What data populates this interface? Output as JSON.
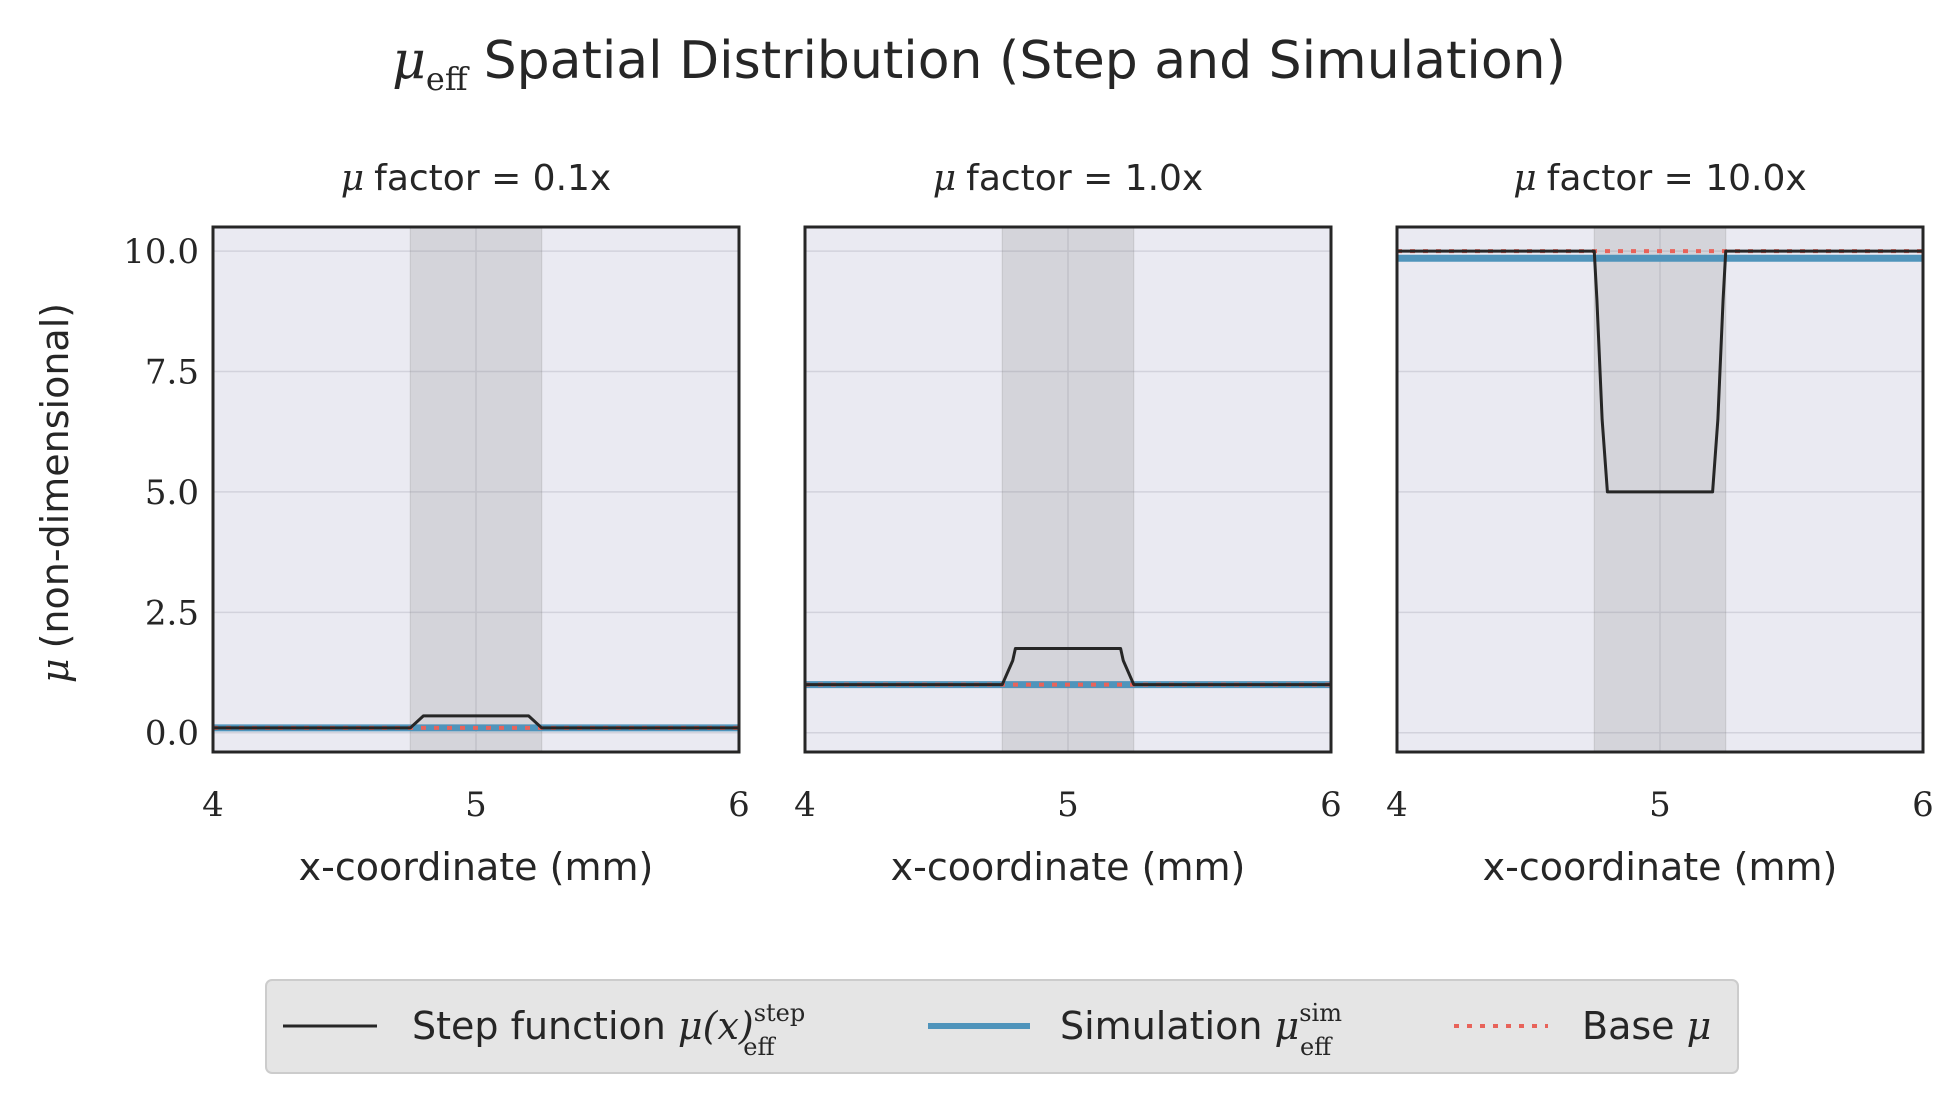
{
  "title": {
    "symbol": "μ",
    "subscript": "eff",
    "text": "Spatial Distribution (Step and Simulation)"
  },
  "colors": {
    "axes_bg": "#eaeaf2",
    "shade": "#7f7f7f",
    "step_line": "#262626",
    "sim_line": "#4f94bb",
    "base_line": "#e8635a",
    "grid": "#d2d2dc",
    "legend_bg": "#e5e5e5"
  },
  "y_axis_label": {
    "symbol": "μ",
    "text": "(non-dimensional)"
  },
  "x_axis_label": "x-coordinate (mm)",
  "legend": {
    "placement": "bottom-center",
    "items": [
      {
        "key": "step",
        "prefix": "Step function ",
        "math": "μ(x)",
        "sup": "step",
        "sub": "eff"
      },
      {
        "key": "sim",
        "prefix": "Simulation ",
        "math": "μ",
        "sup": "sim",
        "sub": "eff"
      },
      {
        "key": "base",
        "prefix": "Base ",
        "math": "μ",
        "sup": "",
        "sub": ""
      }
    ]
  },
  "chart_data": [
    {
      "type": "line",
      "title": {
        "symbol": "μ",
        "text": "factor = 0.1x"
      },
      "xlim": [
        4,
        6
      ],
      "ylim": [
        -0.4,
        10.5
      ],
      "xticks": [
        4,
        5,
        6
      ],
      "yticks": [
        0.0,
        2.5,
        5.0,
        7.5,
        10.0
      ],
      "ytick_labels": [
        "0.0",
        "2.5",
        "5.0",
        "7.5",
        "10.0"
      ],
      "shaded_region": [
        4.75,
        5.25
      ],
      "grid": true,
      "series": [
        {
          "key": "step",
          "name": "Step function μ(x)_eff^step",
          "x": [
            4.0,
            4.75,
            4.8,
            5.2,
            5.25,
            6.0
          ],
          "y": [
            0.1,
            0.1,
            0.35,
            0.35,
            0.1,
            0.1
          ]
        },
        {
          "key": "sim",
          "name": "Simulation μ_eff^sim",
          "x": [
            4.0,
            6.0
          ],
          "y": [
            0.1,
            0.1
          ]
        },
        {
          "key": "base",
          "name": "Base μ",
          "x": [
            4.0,
            6.0
          ],
          "y": [
            0.1,
            0.1
          ]
        }
      ]
    },
    {
      "type": "line",
      "title": {
        "symbol": "μ",
        "text": "factor = 1.0x"
      },
      "xlim": [
        4,
        6
      ],
      "ylim": [
        -0.4,
        10.5
      ],
      "xticks": [
        4,
        5,
        6
      ],
      "yticks": [
        0.0,
        2.5,
        5.0,
        7.5,
        10.0
      ],
      "ytick_labels": [],
      "shaded_region": [
        4.75,
        5.25
      ],
      "grid": true,
      "series": [
        {
          "key": "step",
          "name": "Step function μ(x)_eff^step",
          "x": [
            4.0,
            4.75,
            4.79,
            4.8,
            5.2,
            5.21,
            5.25,
            6.0
          ],
          "y": [
            1.0,
            1.0,
            1.5,
            1.75,
            1.75,
            1.5,
            1.0,
            1.0
          ]
        },
        {
          "key": "sim",
          "name": "Simulation μ_eff^sim",
          "x": [
            4.0,
            6.0
          ],
          "y": [
            1.0,
            1.0
          ]
        },
        {
          "key": "base",
          "name": "Base μ",
          "x": [
            4.0,
            6.0
          ],
          "y": [
            1.0,
            1.0
          ]
        }
      ]
    },
    {
      "type": "line",
      "title": {
        "symbol": "μ",
        "text": "factor = 10.0x"
      },
      "xlim": [
        4,
        6
      ],
      "ylim": [
        -0.4,
        10.5
      ],
      "xticks": [
        4,
        5,
        6
      ],
      "yticks": [
        0.0,
        2.5,
        5.0,
        7.5,
        10.0
      ],
      "ytick_labels": [],
      "shaded_region": [
        4.75,
        5.25
      ],
      "grid": true,
      "series": [
        {
          "key": "step",
          "name": "Step function μ(x)_eff^step",
          "x": [
            4.0,
            4.75,
            4.76,
            4.78,
            4.8,
            5.2,
            5.22,
            5.24,
            5.25,
            6.0
          ],
          "y": [
            10.0,
            10.0,
            9.0,
            6.5,
            5.0,
            5.0,
            6.5,
            9.0,
            10.0,
            10.0
          ]
        },
        {
          "key": "sim",
          "name": "Simulation μ_eff^sim",
          "x": [
            4.0,
            6.0
          ],
          "y": [
            9.85,
            9.85
          ]
        },
        {
          "key": "base",
          "name": "Base μ",
          "x": [
            4.0,
            6.0
          ],
          "y": [
            10.0,
            10.0
          ]
        }
      ]
    }
  ]
}
